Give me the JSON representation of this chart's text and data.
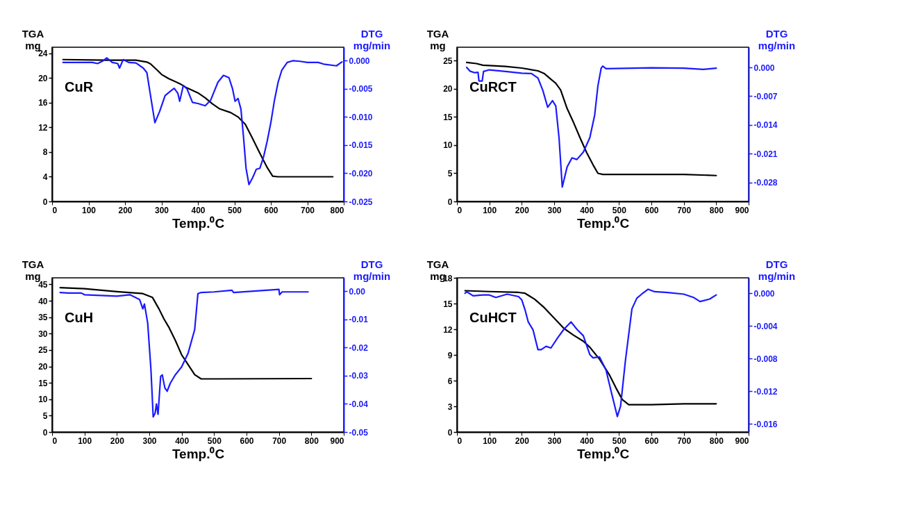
{
  "chart_data": [
    {
      "type": "line",
      "annotations": [
        "CuR"
      ],
      "xlabel": "Temp.⁰C",
      "ylabel": "TGA mg",
      "y2label": "DTG mg/min",
      "grid": false,
      "marker": "none",
      "line_style": "solid",
      "xlim": [
        0,
        800
      ],
      "xticks": [
        0,
        100,
        200,
        300,
        400,
        500,
        600,
        700,
        800
      ],
      "ylim": [
        0,
        25
      ],
      "yticks": [
        0,
        4,
        8,
        12,
        16,
        20,
        24
      ],
      "y2lim": [
        -0.025,
        0.0024
      ],
      "y2ticks": [
        {
          "value": 0,
          "label": "0.000"
        },
        -0.005,
        {
          "value": -0.01,
          "label": "-0.010"
        },
        -0.015,
        {
          "value": -0.02,
          "label": "-0.020"
        },
        -0.025
      ],
      "series": [
        {
          "color": "#000000",
          "x": [
            30,
            150,
            230,
            260,
            270,
            290,
            300,
            320,
            350,
            370,
            400,
            420,
            440,
            460,
            490,
            510,
            530,
            550,
            570,
            590,
            605,
            620,
            770
          ],
          "values": [
            23.0,
            22.9,
            22.9,
            22.6,
            22.3,
            21.2,
            20.6,
            19.9,
            19.1,
            18.4,
            17.6,
            16.8,
            15.8,
            15.0,
            14.4,
            13.7,
            12.5,
            10.2,
            7.8,
            5.5,
            4.1,
            4.0,
            4.0
          ]
        },
        {
          "color": "#1a1aff",
          "axis": "y2",
          "x": [
            30,
            110,
            125,
            140,
            150,
            165,
            180,
            185,
            195,
            210,
            230,
            250,
            260,
            270,
            282,
            295,
            310,
            325,
            335,
            345,
            350,
            360,
            370,
            385,
            400,
            420,
            435,
            445,
            455,
            470,
            485,
            495,
            502,
            510,
            518,
            525,
            532,
            540,
            550,
            560,
            570,
            580,
            590,
            600,
            610,
            620,
            630,
            645,
            660,
            680,
            700,
            730,
            745,
            780,
            795
          ],
          "values": [
            -0.0003,
            -0.0003,
            -0.0005,
            0,
            0.0005,
            -0.0003,
            -0.0005,
            -0.0013,
            0.0002,
            -0.0003,
            -0.0004,
            -0.0013,
            -0.0021,
            -0.0062,
            -0.011,
            -0.009,
            -0.0062,
            -0.0054,
            -0.0049,
            -0.0058,
            -0.0072,
            -0.0044,
            -0.005,
            -0.0074,
            -0.0076,
            -0.008,
            -0.007,
            -0.0054,
            -0.0038,
            -0.0026,
            -0.003,
            -0.005,
            -0.0072,
            -0.0067,
            -0.0086,
            -0.0135,
            -0.0191,
            -0.022,
            -0.0208,
            -0.0193,
            -0.0191,
            -0.0171,
            -0.0143,
            -0.011,
            -0.007,
            -0.0038,
            -0.0017,
            -0.0003,
            0,
            -0.0001,
            -0.0003,
            -0.0003,
            -0.0006,
            -0.0009,
            -0.0002
          ]
        }
      ]
    },
    {
      "type": "line",
      "annotations": [
        "CuRCT"
      ],
      "xlabel": "Temp.⁰C",
      "ylabel": "TGA mg",
      "y2label": "DTG mg/min",
      "grid": false,
      "marker": "none",
      "line_style": "solid",
      "xlim": [
        0,
        900
      ],
      "xticks": [
        0,
        100,
        200,
        300,
        400,
        500,
        600,
        700,
        800,
        900
      ],
      "ylim": [
        0,
        27.4
      ],
      "yticks": [
        0,
        5,
        10,
        15,
        20,
        25
      ],
      "y2lim": [
        -0.0326,
        0.0049
      ],
      "y2ticks": [
        {
          "value": 0,
          "label": "0.000"
        },
        -0.007,
        -0.014,
        -0.021,
        -0.028
      ],
      "series": [
        {
          "color": "#000000",
          "x": [
            30,
            60,
            80,
            150,
            200,
            250,
            270,
            290,
            305,
            320,
            340,
            360,
            380,
            400,
            420,
            435,
            450,
            600,
            700,
            800
          ],
          "values": [
            24.7,
            24.5,
            24.2,
            24.0,
            23.7,
            23.2,
            22.7,
            21.7,
            21.0,
            19.8,
            16.5,
            14.0,
            11.3,
            8.7,
            6.5,
            5.0,
            4.8,
            4.8,
            4.8,
            4.6
          ]
        },
        {
          "color": "#1a1aff",
          "axis": "y2",
          "x": [
            30,
            40,
            55,
            65,
            68,
            78,
            82,
            100,
            150,
            200,
            230,
            250,
            265,
            280,
            295,
            305,
            315,
            325,
            340,
            355,
            370,
            390,
            410,
            425,
            435,
            445,
            450,
            460,
            600,
            700,
            760,
            800
          ],
          "values": [
            0,
            -0.0009,
            -0.0013,
            -0.0012,
            -0.0033,
            -0.0033,
            -0.001,
            -0.0006,
            -0.001,
            -0.0014,
            -0.0015,
            -0.0026,
            -0.0056,
            -0.0097,
            -0.0081,
            -0.0094,
            -0.0171,
            -0.0291,
            -0.0242,
            -0.022,
            -0.0224,
            -0.0206,
            -0.0171,
            -0.0116,
            -0.0045,
            -0.0002,
            0.0003,
            -0.0003,
            -0.0001,
            -0.0002,
            -0.0005,
            -0.0002
          ]
        }
      ]
    },
    {
      "type": "line",
      "annotations": [
        "CuH"
      ],
      "xlabel": "Temp.⁰C",
      "ylabel": "TGA mg",
      "y2label": "DTG mg/min",
      "grid": false,
      "marker": "none",
      "line_style": "solid",
      "xlim": [
        0,
        900
      ],
      "xticks": [
        0,
        100,
        200,
        300,
        400,
        500,
        600,
        700,
        800,
        900
      ],
      "ylim": [
        0,
        47
      ],
      "yticks": [
        0,
        5,
        10,
        15,
        20,
        25,
        30,
        35,
        40,
        45
      ],
      "y2lim": [
        -0.05,
        0.0048
      ],
      "y2ticks": [
        {
          "value": 0,
          "label": "0.00"
        },
        -0.01,
        -0.02,
        -0.03,
        -0.04,
        -0.05
      ],
      "series": [
        {
          "color": "#000000",
          "x": [
            25,
            100,
            200,
            280,
            310,
            330,
            345,
            360,
            380,
            400,
            420,
            440,
            460,
            500,
            800
          ],
          "values": [
            44.0,
            43.7,
            42.8,
            42.2,
            41.0,
            37.5,
            34.5,
            32.0,
            28.0,
            23.5,
            20.5,
            17.5,
            16.2,
            16.2,
            16.3
          ]
        },
        {
          "color": "#1a1aff",
          "axis": "y2",
          "x": [
            25,
            50,
            90,
            100,
            200,
            240,
            270,
            280,
            285,
            295,
            305,
            312,
            318,
            322,
            327,
            335,
            340,
            348,
            355,
            365,
            380,
            400,
            420,
            440,
            450,
            460,
            500,
            555,
            560,
            700,
            702,
            710,
            790
          ],
          "values": [
            -0.0004,
            -0.0006,
            -0.0006,
            -0.0012,
            -0.0017,
            -0.0012,
            -0.0029,
            -0.0062,
            -0.0045,
            -0.0112,
            -0.0277,
            -0.0446,
            -0.0433,
            -0.04,
            -0.0437,
            -0.0302,
            -0.0297,
            -0.0343,
            -0.0355,
            -0.0326,
            -0.0297,
            -0.0268,
            -0.0219,
            -0.0136,
            -0.0008,
            -0.0004,
            -0.0002,
            0.0004,
            -0.0004,
            0.0007,
            -0.0012,
            -0.0002,
            -0.0002
          ]
        }
      ]
    },
    {
      "type": "line",
      "annotations": [
        "CuHCT"
      ],
      "xlabel": "Temp.⁰C",
      "ylabel": "TGA mg",
      "y2label": "DTG mg/min",
      "grid": false,
      "marker": "none",
      "line_style": "solid",
      "xlim": [
        0,
        900
      ],
      "xticks": [
        0,
        100,
        200,
        300,
        400,
        500,
        600,
        700,
        800,
        900
      ],
      "ylim": [
        0,
        18
      ],
      "yticks": [
        0,
        3,
        6,
        9,
        12,
        15,
        18
      ],
      "y2lim": [
        -0.017,
        0.0019
      ],
      "y2ticks": [
        {
          "value": 0,
          "label": "0.000"
        },
        -0.004,
        -0.008,
        -0.012,
        -0.016
      ],
      "series": [
        {
          "color": "#000000",
          "x": [
            25,
            100,
            190,
            210,
            240,
            270,
            300,
            330,
            360,
            390,
            410,
            440,
            470,
            490,
            510,
            530,
            550,
            600,
            700,
            800
          ],
          "values": [
            16.5,
            16.4,
            16.3,
            16.2,
            15.5,
            14.5,
            13.3,
            12.1,
            11.3,
            10.6,
            9.9,
            8.5,
            6.7,
            5.2,
            3.8,
            3.2,
            3.2,
            3.2,
            3.3,
            3.3
          ]
        },
        {
          "color": "#1a1aff",
          "axis": "y2",
          "x": [
            25,
            30,
            50,
            80,
            100,
            120,
            155,
            190,
            200,
            210,
            220,
            235,
            250,
            260,
            275,
            290,
            310,
            330,
            352,
            370,
            390,
            410,
            420,
            440,
            460,
            475,
            495,
            505,
            520,
            540,
            555,
            570,
            590,
            610,
            650,
            700,
            730,
            750,
            780,
            800
          ],
          "values": [
            0,
            0.0002,
            -0.0003,
            -0.0002,
            -0.0002,
            -0.0005,
            -0.0001,
            -0.0004,
            -0.0008,
            -0.002,
            -0.0035,
            -0.0045,
            -0.0069,
            -0.0069,
            -0.0065,
            -0.0067,
            -0.0055,
            -0.0044,
            -0.0035,
            -0.0044,
            -0.0052,
            -0.0075,
            -0.0079,
            -0.0078,
            -0.0094,
            -0.0119,
            -0.0151,
            -0.0138,
            -0.0082,
            -0.0019,
            -0.0006,
            -0.0001,
            0.0005,
            0.0002,
            0.0001,
            -0.0001,
            -0.0005,
            -0.001,
            -0.0007,
            -0.0002
          ]
        }
      ]
    }
  ]
}
